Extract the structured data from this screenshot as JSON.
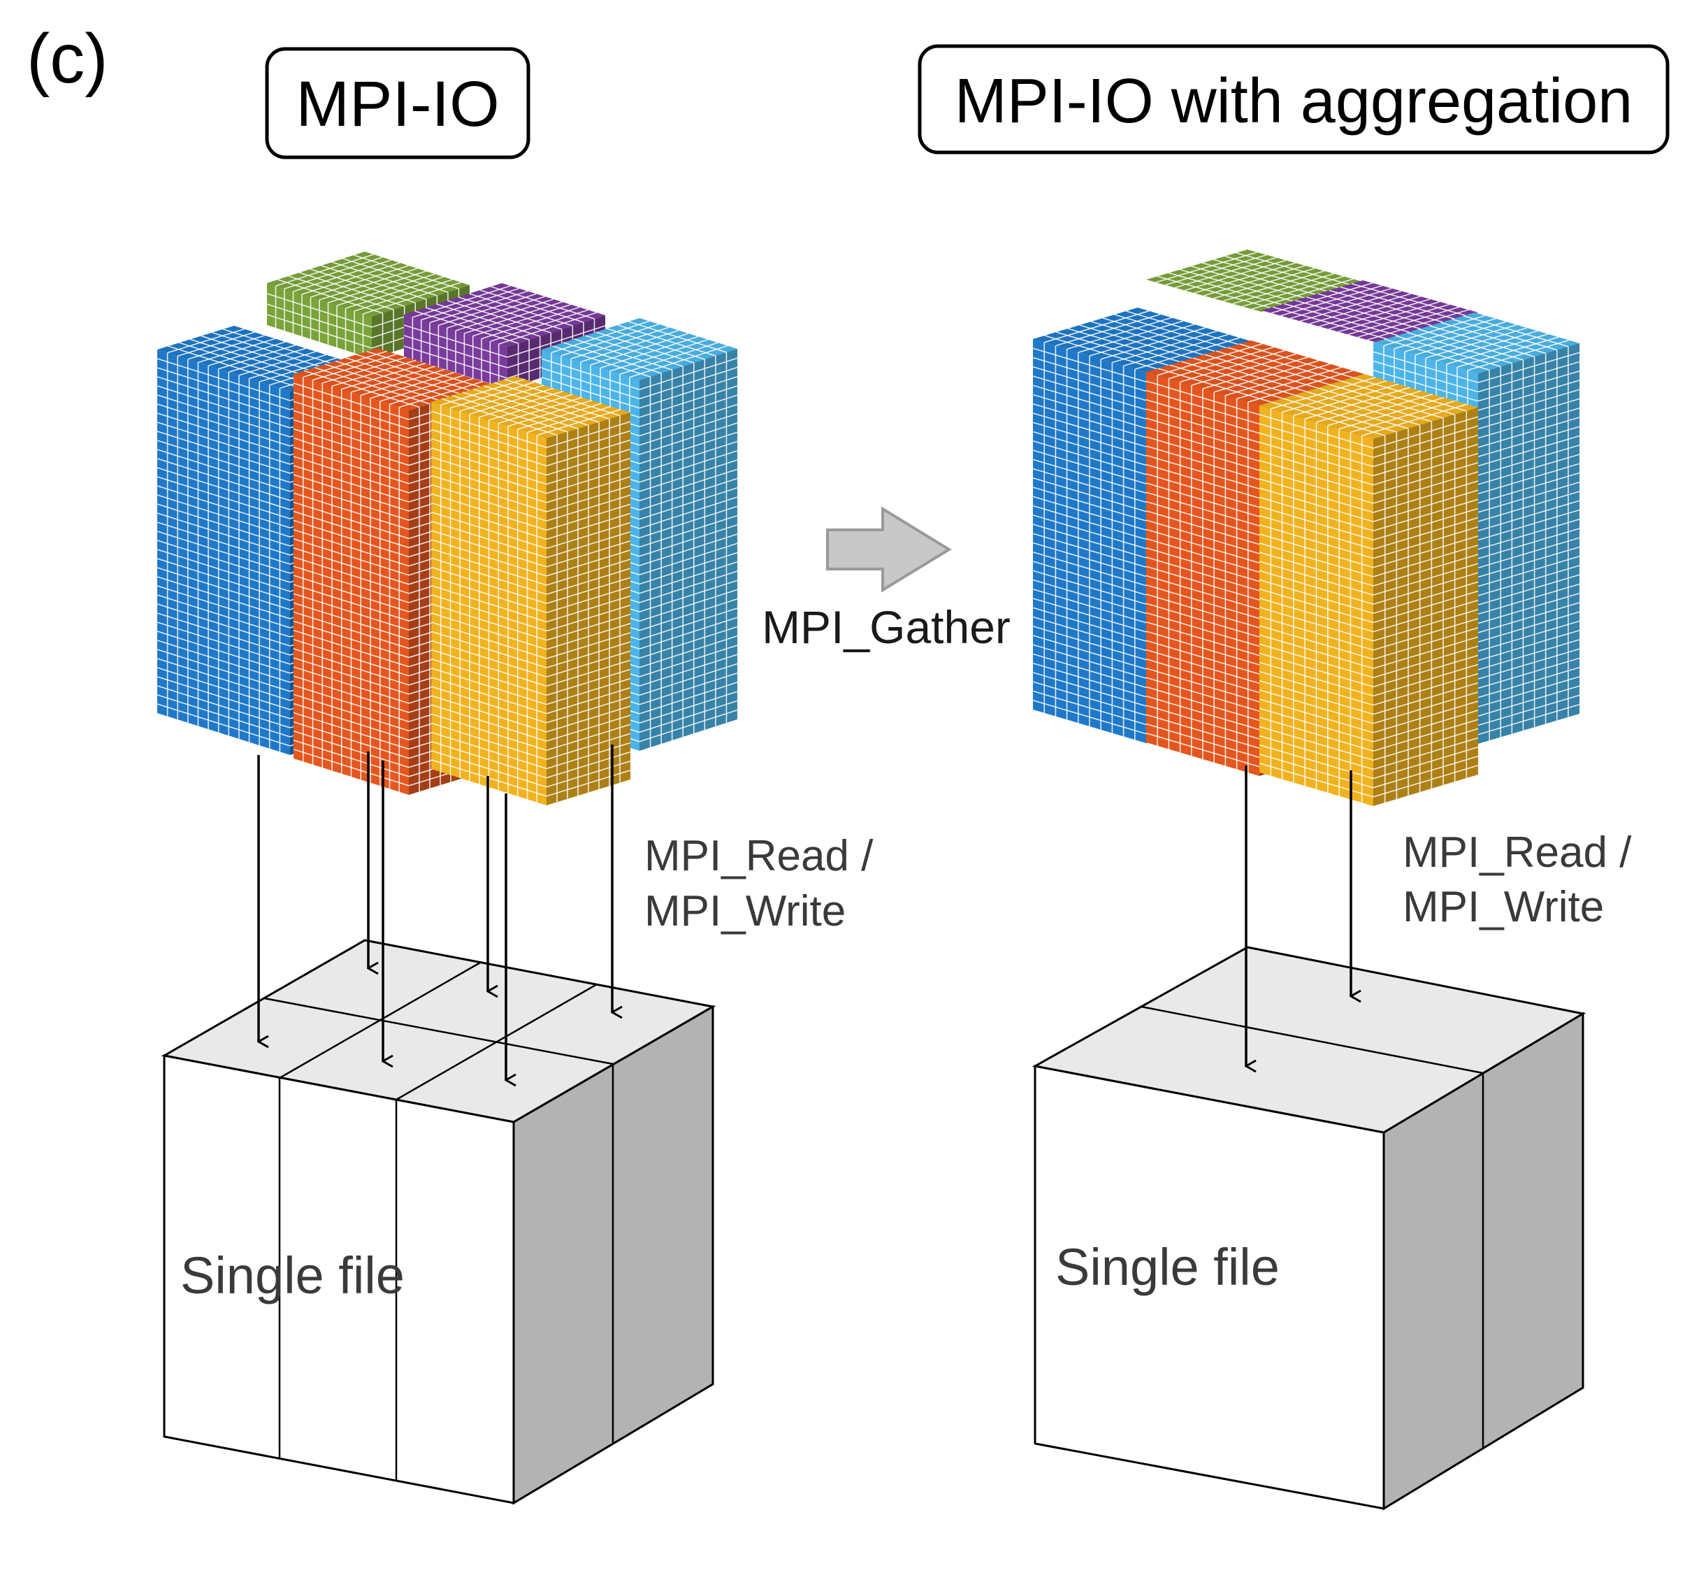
{
  "panel_label": "(c)",
  "left": {
    "title": "MPI-IO",
    "io_label_line1": "MPI_Read /",
    "io_label_line2": "MPI_Write",
    "file_label": "Single file"
  },
  "gather_label": "MPI_Gather",
  "right": {
    "title": "MPI-IO with aggregation",
    "io_label_line1": "MPI_Read /",
    "io_label_line2": "MPI_Write",
    "file_label": "Single file"
  },
  "colors": {
    "green": "#7aa33a",
    "purple": "#7a3b9c",
    "light_blue": "#4cb4e8",
    "blue": "#1f78c8",
    "orange": "#e4561e",
    "yellow": "#f0b21f",
    "arrow_fill": "#c8c8c8",
    "box_top": "#e9e9e9",
    "box_side": "#b3b3b3",
    "text": "#3a3a3a"
  }
}
